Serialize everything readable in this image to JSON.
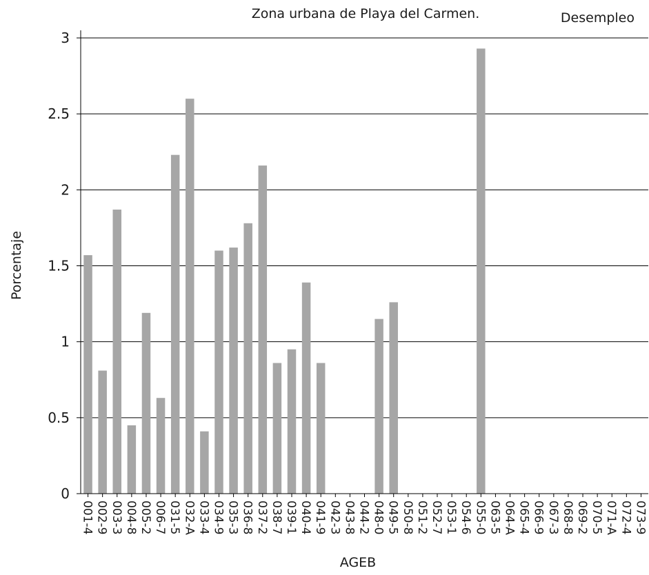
{
  "chart_data": {
    "type": "bar",
    "title": "Zona urbana de Playa del Carmen.",
    "subtitle": "Desempleo",
    "xlabel": "AGEB",
    "ylabel": "Porcentaje",
    "ylim": [
      0,
      3.05
    ],
    "yticks": [
      0,
      0.5,
      1,
      1.5,
      2,
      2.5,
      3
    ],
    "ytick_labels": [
      "0",
      "0.5",
      "1",
      "1.5",
      "2",
      "2.5",
      "3"
    ],
    "grid": true,
    "bar_color": "#a6a6a6",
    "categories": [
      "001-4",
      "002-9",
      "003-3",
      "004-8",
      "005-2",
      "006-7",
      "031-5",
      "032-A",
      "033-4",
      "034-9",
      "035-3",
      "036-8",
      "037-2",
      "038-7",
      "039-1",
      "040-4",
      "041-9",
      "042-3",
      "043-8",
      "044-2",
      "048-0",
      "049-5",
      "050-8",
      "051-2",
      "052-7",
      "053-1",
      "054-6",
      "055-0",
      "063-5",
      "064-A",
      "065-4",
      "066-9",
      "067-3",
      "068-8",
      "069-2",
      "070-5",
      "071-A",
      "072-4",
      "073-9"
    ],
    "values": [
      1.57,
      0.81,
      1.87,
      0.45,
      1.19,
      0.63,
      2.23,
      2.6,
      0.41,
      1.6,
      1.62,
      1.78,
      2.16,
      0.86,
      0.95,
      1.39,
      0.86,
      0,
      0,
      0,
      1.15,
      1.26,
      0,
      0,
      0,
      0,
      0,
      2.93,
      0,
      0,
      0,
      0,
      0,
      0,
      0,
      0,
      0,
      0,
      0
    ]
  }
}
